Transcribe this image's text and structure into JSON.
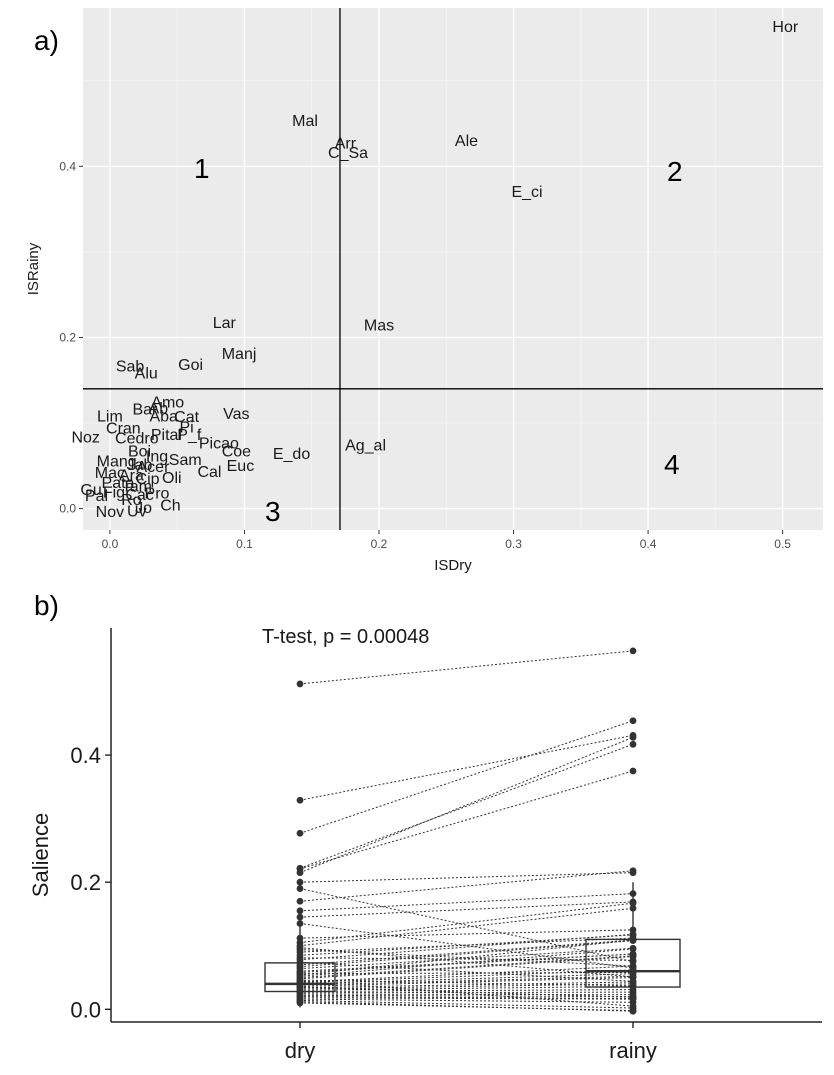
{
  "panel_a": {
    "letter": "a)",
    "quadrants": [
      "1",
      "2",
      "3",
      "4"
    ]
  },
  "panel_b": {
    "letter": "b)"
  },
  "colors": {
    "panel_bg": "#ebebeb",
    "grid_major": "#ffffff",
    "grid_minor": "#f5f5f5",
    "text": "#1a1a1a",
    "ink": "#333333"
  },
  "chart_data": [
    {
      "type": "scatter",
      "title": "",
      "xlabel": "ISDry",
      "ylabel": "ISRainy",
      "xlim": [
        -0.02,
        0.53
      ],
      "ylim": [
        -0.025,
        0.585
      ],
      "xticks": [
        "0.0",
        "0.1",
        "0.2",
        "0.3",
        "0.4",
        "0.5"
      ],
      "yticks": [
        "0.0",
        "0.2",
        "0.4"
      ],
      "grid": true,
      "reference_lines": {
        "x": 0.171,
        "y": 0.14
      },
      "points": [
        {
          "label": "Hor",
          "x": 0.502,
          "y": 0.564
        },
        {
          "label": "Mal",
          "x": 0.145,
          "y": 0.454
        },
        {
          "label": "Arr",
          "x": 0.175,
          "y": 0.428
        },
        {
          "label": "C_Sa",
          "x": 0.177,
          "y": 0.417
        },
        {
          "label": "Ale",
          "x": 0.265,
          "y": 0.431
        },
        {
          "label": "E_ci",
          "x": 0.31,
          "y": 0.371
        },
        {
          "label": "Mas",
          "x": 0.2,
          "y": 0.215
        },
        {
          "label": "Lar",
          "x": 0.085,
          "y": 0.218
        },
        {
          "label": "Manj",
          "x": 0.096,
          "y": 0.182
        },
        {
          "label": "Goi",
          "x": 0.06,
          "y": 0.169
        },
        {
          "label": "Sab",
          "x": 0.015,
          "y": 0.167
        },
        {
          "label": "Alu",
          "x": 0.027,
          "y": 0.159
        },
        {
          "label": "Amo",
          "x": 0.043,
          "y": 0.125
        },
        {
          "label": "Bar",
          "x": 0.026,
          "y": 0.117
        },
        {
          "label": "Ab",
          "x": 0.036,
          "y": 0.118
        },
        {
          "label": "Aba",
          "x": 0.04,
          "y": 0.109
        },
        {
          "label": "Cat",
          "x": 0.057,
          "y": 0.108
        },
        {
          "label": "Vas",
          "x": 0.094,
          "y": 0.112
        },
        {
          "label": "Lim",
          "x": 0.0,
          "y": 0.109
        },
        {
          "label": "Pi",
          "x": 0.057,
          "y": 0.096
        },
        {
          "label": "Cran",
          "x": 0.01,
          "y": 0.095
        },
        {
          "label": "Pital",
          "x": 0.042,
          "y": 0.087
        },
        {
          "label": "P_f",
          "x": 0.059,
          "y": 0.087
        },
        {
          "label": "Noz",
          "x": -0.018,
          "y": 0.084
        },
        {
          "label": "Cedro",
          "x": 0.02,
          "y": 0.083
        },
        {
          "label": "Picao",
          "x": 0.081,
          "y": 0.077
        },
        {
          "label": "Ag_al",
          "x": 0.19,
          "y": 0.075
        },
        {
          "label": "E_do",
          "x": 0.135,
          "y": 0.065
        },
        {
          "label": "Coe",
          "x": 0.094,
          "y": 0.068
        },
        {
          "label": "Boi",
          "x": 0.022,
          "y": 0.068
        },
        {
          "label": "Ing",
          "x": 0.035,
          "y": 0.062
        },
        {
          "label": "Sam",
          "x": 0.056,
          "y": 0.058
        },
        {
          "label": "Euc",
          "x": 0.097,
          "y": 0.051
        },
        {
          "label": "Mang",
          "x": 0.005,
          "y": 0.056
        },
        {
          "label": "Jab",
          "x": 0.022,
          "y": 0.052
        },
        {
          "label": "Acer",
          "x": 0.032,
          "y": 0.05
        },
        {
          "label": "Cal",
          "x": 0.074,
          "y": 0.044
        },
        {
          "label": "Mac",
          "x": 0.0,
          "y": 0.043
        },
        {
          "label": "Ara",
          "x": 0.016,
          "y": 0.04
        },
        {
          "label": "Cip",
          "x": 0.028,
          "y": 0.036
        },
        {
          "label": "Oli",
          "x": 0.046,
          "y": 0.037
        },
        {
          "label": "Pata",
          "x": 0.006,
          "y": 0.031
        },
        {
          "label": "Tam",
          "x": 0.02,
          "y": 0.027
        },
        {
          "label": "Gu",
          "x": -0.014,
          "y": 0.023
        },
        {
          "label": "Fig",
          "x": 0.003,
          "y": 0.02
        },
        {
          "label": "Cac",
          "x": 0.022,
          "y": 0.017
        },
        {
          "label": "Pro",
          "x": 0.035,
          "y": 0.019
        },
        {
          "label": "Pal",
          "x": -0.01,
          "y": 0.016
        },
        {
          "label": "Ro",
          "x": 0.016,
          "y": 0.011
        },
        {
          "label": "Ch",
          "x": 0.045,
          "y": 0.005
        },
        {
          "label": "Jo",
          "x": 0.025,
          "y": 0.002
        },
        {
          "label": "Nov",
          "x": 0.0,
          "y": -0.003
        },
        {
          "label": "Uv",
          "x": 0.02,
          "y": -0.002
        }
      ]
    },
    {
      "type": "box",
      "title": "",
      "annotation": "T-test, p = 0.00048",
      "categories": [
        "dry",
        "rainy"
      ],
      "ylabel": "Salience",
      "xlabel": "",
      "ylim": [
        -0.02,
        0.6
      ],
      "yticks": [
        "0.0",
        "0.2",
        "0.4"
      ],
      "boxes": [
        {
          "name": "dry",
          "q1": 0.028,
          "median": 0.04,
          "q3": 0.073,
          "whisker_low": 0.003,
          "whisker_high": 0.14
        },
        {
          "name": "rainy",
          "q1": 0.035,
          "median": 0.06,
          "q3": 0.11,
          "whisker_low": 0.003,
          "whisker_high": 0.2
        }
      ],
      "pairs": [
        [
          0.512,
          0.564
        ],
        [
          0.329,
          0.431
        ],
        [
          0.277,
          0.454
        ],
        [
          0.222,
          0.417
        ],
        [
          0.221,
          0.375
        ],
        [
          0.215,
          0.428
        ],
        [
          0.2,
          0.215
        ],
        [
          0.19,
          0.075
        ],
        [
          0.17,
          0.218
        ],
        [
          0.155,
          0.182
        ],
        [
          0.145,
          0.169
        ],
        [
          0.135,
          0.065
        ],
        [
          0.112,
          0.125
        ],
        [
          0.105,
          0.167
        ],
        [
          0.1,
          0.159
        ],
        [
          0.097,
          0.051
        ],
        [
          0.094,
          0.068
        ],
        [
          0.09,
          0.112
        ],
        [
          0.085,
          0.117
        ],
        [
          0.081,
          0.077
        ],
        [
          0.078,
          0.118
        ],
        [
          0.074,
          0.044
        ],
        [
          0.07,
          0.109
        ],
        [
          0.067,
          0.108
        ],
        [
          0.064,
          0.096
        ],
        [
          0.06,
          0.087
        ],
        [
          0.058,
          0.087
        ],
        [
          0.056,
          0.058
        ],
        [
          0.054,
          0.109
        ],
        [
          0.052,
          0.095
        ],
        [
          0.05,
          0.084
        ],
        [
          0.048,
          0.083
        ],
        [
          0.046,
          0.037
        ],
        [
          0.045,
          0.005
        ],
        [
          0.043,
          0.068
        ],
        [
          0.042,
          0.062
        ],
        [
          0.04,
          0.056
        ],
        [
          0.038,
          0.052
        ],
        [
          0.036,
          0.05
        ],
        [
          0.035,
          0.019
        ],
        [
          0.034,
          0.043
        ],
        [
          0.032,
          0.04
        ],
        [
          0.03,
          0.036
        ],
        [
          0.028,
          0.031
        ],
        [
          0.026,
          0.027
        ],
        [
          0.024,
          0.023
        ],
        [
          0.022,
          0.02
        ],
        [
          0.02,
          0.017
        ],
        [
          0.018,
          0.016
        ],
        [
          0.016,
          0.011
        ],
        [
          0.014,
          0.002
        ],
        [
          0.012,
          -0.003
        ],
        [
          0.01,
          -0.002
        ]
      ]
    }
  ]
}
